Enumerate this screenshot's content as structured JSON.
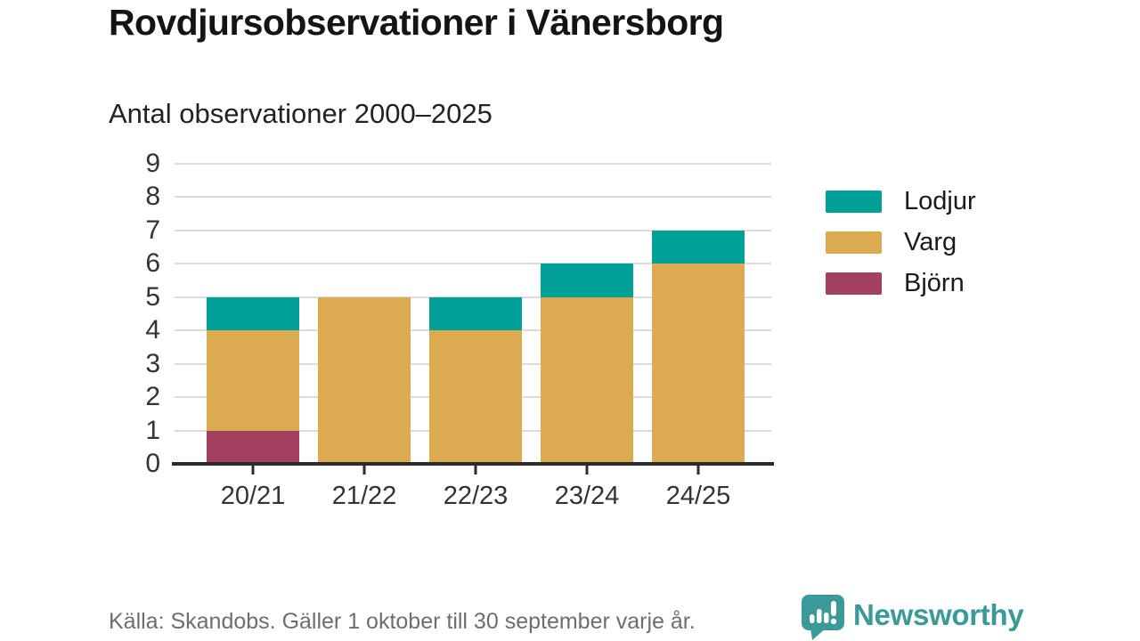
{
  "chart_data": {
    "type": "bar",
    "stacked": true,
    "title": "Rovdjursobservationer i Vänersborg",
    "subtitle": "Antal observationer 2000–2025",
    "categories": [
      "20/21",
      "21/22",
      "22/23",
      "23/24",
      "24/25"
    ],
    "series": [
      {
        "name": "Björn",
        "color": "#a4405f",
        "values": [
          1,
          0,
          0,
          0,
          0
        ]
      },
      {
        "name": "Varg",
        "color": "#dcaa50",
        "values": [
          3,
          5,
          4,
          5,
          6
        ]
      },
      {
        "name": "Lodjur",
        "color": "#00a096",
        "values": [
          1,
          0,
          1,
          1,
          1
        ]
      }
    ],
    "totals": [
      5,
      5,
      5,
      6,
      7
    ],
    "ylim": [
      0,
      9
    ],
    "y_ticks": [
      0,
      1,
      2,
      3,
      4,
      5,
      6,
      7,
      8,
      9
    ],
    "grid": true,
    "legend": {
      "position": "right",
      "items": [
        {
          "label": "Lodjur",
          "color": "#00a096"
        },
        {
          "label": "Varg",
          "color": "#dcaa50"
        },
        {
          "label": "Björn",
          "color": "#a4405f"
        }
      ]
    }
  },
  "footer": {
    "source": "Källa: Skandobs. Gäller 1 oktober till 30 september varje år.",
    "brand": "Newsworthy"
  },
  "theme": {
    "background": "#ffffff",
    "grid_color": "#dcdcdc",
    "axis_color": "#2b2b2b",
    "tick_label_color": "#333333",
    "text_dark": "#1a1a1a",
    "footer_text_color": "#6e6e6e",
    "brand_color": "#3b9997"
  }
}
